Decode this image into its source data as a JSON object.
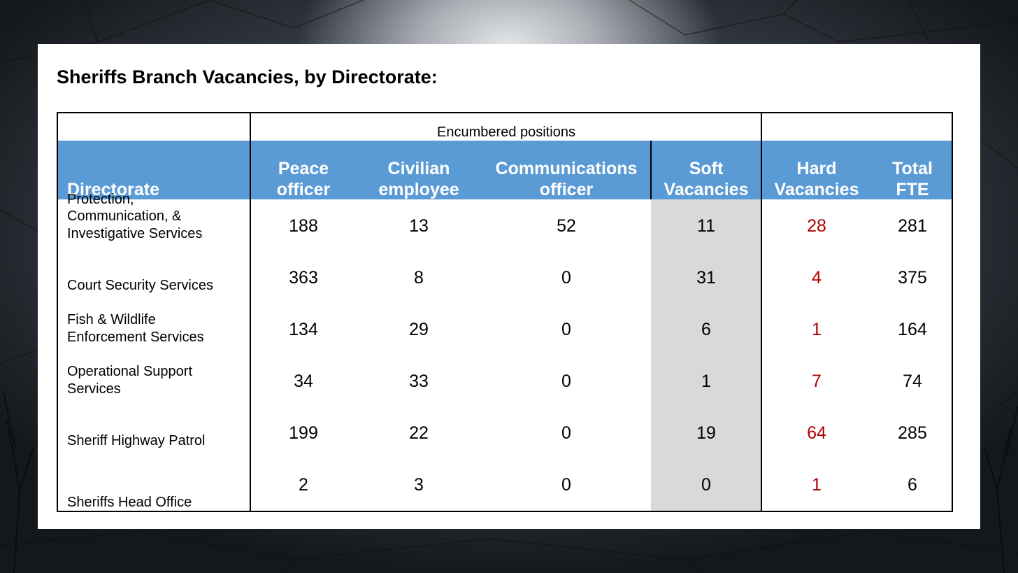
{
  "slide": {
    "title": "Sheriffs Branch Vacancies, by Directorate:"
  },
  "table": {
    "group_header": "Encumbered positions",
    "columns": {
      "directorate": "Directorate",
      "peace": [
        "Peace",
        "officer"
      ],
      "civilian": [
        "Civilian",
        "employee"
      ],
      "comms": [
        "Communications",
        "officer"
      ],
      "soft": [
        "Soft",
        "Vacancies"
      ],
      "hard": [
        "Hard",
        "Vacancies"
      ],
      "total": [
        "Total",
        "FTE"
      ]
    },
    "rows": [
      {
        "name": [
          "Protection,",
          "Communication, &",
          "Investigative Services"
        ],
        "peace": "188",
        "civilian": "13",
        "comms": "52",
        "soft": "11",
        "hard": "28",
        "total": "281"
      },
      {
        "name": [
          "Court Security Services"
        ],
        "peace": "363",
        "civilian": "8",
        "comms": "0",
        "soft": "31",
        "hard": "4",
        "total": "375"
      },
      {
        "name": [
          "Fish & Wildlife",
          "Enforcement Services"
        ],
        "peace": "134",
        "civilian": "29",
        "comms": "0",
        "soft": "6",
        "hard": "1",
        "total": "164"
      },
      {
        "name": [
          "Operational Support",
          "Services"
        ],
        "peace": "34",
        "civilian": "33",
        "comms": "0",
        "soft": "1",
        "hard": "7",
        "total": "74"
      },
      {
        "name": [
          "Sheriff Highway Patrol"
        ],
        "peace": "199",
        "civilian": "22",
        "comms": "0",
        "soft": "19",
        "hard": "64",
        "total": "285"
      },
      {
        "name": [
          "Sheriffs Head Office"
        ],
        "peace": "2",
        "civilian": "3",
        "comms": "0",
        "soft": "0",
        "hard": "1",
        "total": "6"
      }
    ]
  },
  "colors": {
    "header_bg": "#5b9bd5",
    "soft_column_bg": "#d9d9d9",
    "hard_vacancy_text": "#b00000"
  }
}
